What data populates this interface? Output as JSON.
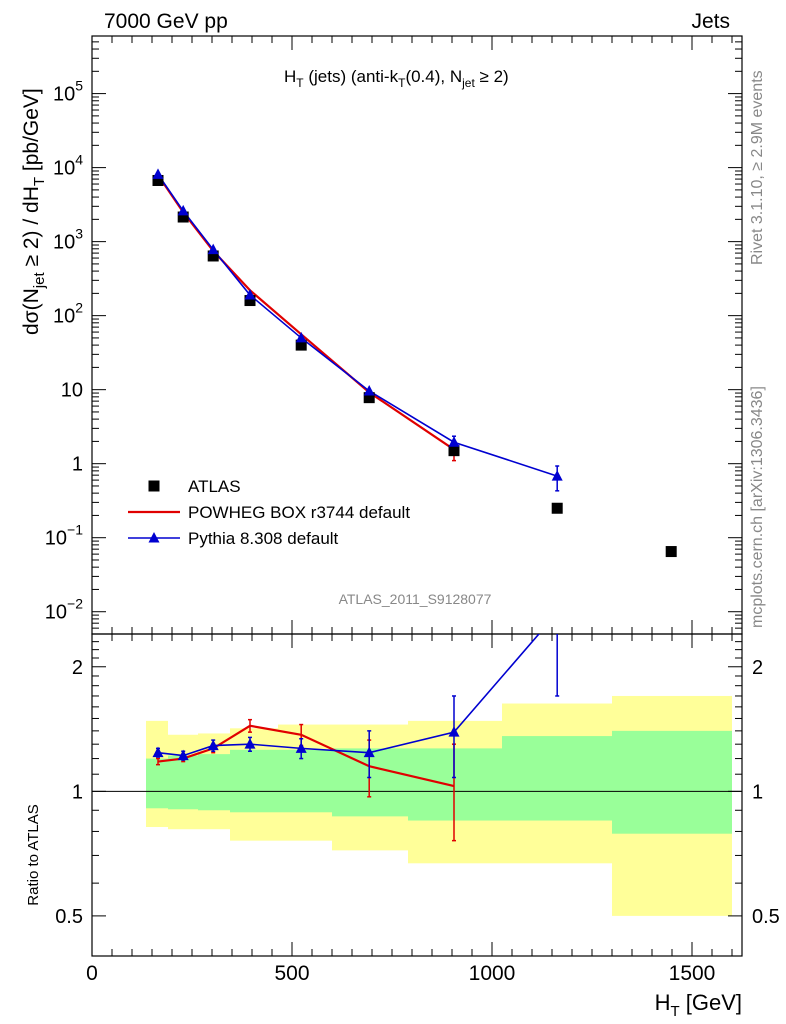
{
  "header": {
    "left": "7000 GeV pp",
    "right": "Jets"
  },
  "side_labels": {
    "rivet": "Rivet 3.1.10, ≥ 2.9M events",
    "mcplots": "mcplots.cern.ch [arXiv:1306.3436]"
  },
  "chart_data": [
    {
      "type": "scatter",
      "title_parts": {
        "a": "H",
        "a_sub": "T",
        "b": " (jets) (anti-k",
        "b_sub": "T",
        "c": "(0.4), N",
        "c_sub": "jet",
        "d": " ≥ 2)"
      },
      "ylabel_parts": {
        "a": "dσ(N",
        "a_sub": "jet",
        "b": " ≥ 2) / dH",
        "b_sub": "T",
        "c": " [pb/GeV]"
      },
      "analysis_label": "ATLAS_2011_S9128077",
      "xlim": [
        0,
        1625
      ],
      "ylim": [
        0.005,
        600000
      ],
      "yscale": "log",
      "y_ticks": [
        {
          "v": 0.01,
          "base": "10",
          "exp": "−2"
        },
        {
          "v": 0.1,
          "base": "10",
          "exp": "−1"
        },
        {
          "v": 1,
          "base": "1",
          "exp": ""
        },
        {
          "v": 10,
          "base": "10",
          "exp": ""
        },
        {
          "v": 100,
          "base": "10",
          "exp": "2"
        },
        {
          "v": 1000,
          "base": "10",
          "exp": "3"
        },
        {
          "v": 10000,
          "base": "10",
          "exp": "4"
        },
        {
          "v": 100000,
          "base": "10",
          "exp": "5"
        }
      ],
      "legend": {
        "placement": "bottom-left",
        "entries": [
          {
            "label": "ATLAS",
            "marker": "square",
            "color": "#000000"
          },
          {
            "label": "POWHEG BOX r3744 default",
            "marker": "line",
            "color": "#e00000"
          },
          {
            "label": "Pythia 8.308 default",
            "marker": "triangle",
            "color": "#0000d0"
          }
        ]
      },
      "series": [
        {
          "name": "ATLAS",
          "color": "#000000",
          "x": [
            165,
            228,
            303,
            395,
            523,
            693,
            905,
            1163,
            1448
          ],
          "y": [
            6700,
            2150,
            640,
            160,
            40,
            7.8,
            1.5,
            0.25,
            0.065
          ]
        },
        {
          "name": "POWHEG BOX r3744 default",
          "color": "#e00000",
          "x": [
            165,
            228,
            303,
            395,
            523,
            693,
            905
          ],
          "y": [
            7900,
            2500,
            750,
            220,
            56,
            9.2,
            1.55
          ],
          "yerr": [
            0,
            0,
            0,
            0,
            0,
            0.3,
            0.45
          ]
        },
        {
          "name": "Pythia 8.308 default",
          "color": "#0000d0",
          "x": [
            165,
            228,
            303,
            395,
            523,
            693,
            905,
            1163
          ],
          "y": [
            8100,
            2600,
            780,
            190,
            50,
            9.6,
            1.95,
            0.68
          ],
          "yerr": [
            0,
            0,
            0,
            0,
            0,
            0.3,
            0.4,
            0.25
          ]
        }
      ]
    },
    {
      "type": "line",
      "ylabel": "Ratio to ATLAS",
      "xlabel_parts": {
        "a": "H",
        "a_sub": "T",
        "b": " [GeV]"
      },
      "xlim": [
        0,
        1625
      ],
      "ylim": [
        0.4,
        2.4
      ],
      "yscale": "log",
      "x_ticks": [
        "0",
        "500",
        "1000",
        "1500"
      ],
      "y_ticks": [
        "0.5",
        "1",
        "2"
      ],
      "reference_line": 1,
      "bands": [
        {
          "x0": 135,
          "x1": 190,
          "yellow": [
            0.82,
            1.48
          ],
          "green": [
            0.91,
            1.2
          ]
        },
        {
          "x0": 190,
          "x1": 265,
          "yellow": [
            0.81,
            1.37
          ],
          "green": [
            0.905,
            1.22
          ]
        },
        {
          "x0": 265,
          "x1": 345,
          "yellow": [
            0.81,
            1.38
          ],
          "green": [
            0.9,
            1.23
          ]
        },
        {
          "x0": 345,
          "x1": 465,
          "yellow": [
            0.76,
            1.42
          ],
          "green": [
            0.89,
            1.26
          ]
        },
        {
          "x0": 465,
          "x1": 600,
          "yellow": [
            0.76,
            1.45
          ],
          "green": [
            0.89,
            1.26
          ]
        },
        {
          "x0": 600,
          "x1": 790,
          "yellow": [
            0.72,
            1.45
          ],
          "green": [
            0.87,
            1.27
          ]
        },
        {
          "x0": 790,
          "x1": 1025,
          "yellow": [
            0.67,
            1.48
          ],
          "green": [
            0.85,
            1.27
          ]
        },
        {
          "x0": 1025,
          "x1": 1300,
          "yellow": [
            0.67,
            1.63
          ],
          "green": [
            0.85,
            1.36
          ]
        },
        {
          "x0": 1300,
          "x1": 1600,
          "yellow": [
            0.5,
            1.7
          ],
          "green": [
            0.79,
            1.4
          ]
        }
      ],
      "series": [
        {
          "name": "POWHEG BOX r3744 default",
          "color": "#e00000",
          "x": [
            165,
            228,
            303,
            395,
            523,
            693,
            905
          ],
          "y": [
            1.18,
            1.2,
            1.27,
            1.44,
            1.37,
            1.15,
            1.03
          ],
          "yerr": [
            0.02,
            0.02,
            0.03,
            0.05,
            0.08,
            0.18,
            0.27
          ]
        },
        {
          "name": "Pythia 8.308 default",
          "color": "#0000d0",
          "x": [
            165,
            228,
            303,
            395,
            523,
            693,
            905,
            1163
          ],
          "y": [
            1.24,
            1.22,
            1.29,
            1.3,
            1.27,
            1.24,
            1.39,
            2.7
          ],
          "yerr": [
            0.03,
            0.03,
            0.04,
            0.05,
            0.07,
            0.16,
            0.31,
            1.0
          ]
        }
      ]
    }
  ]
}
